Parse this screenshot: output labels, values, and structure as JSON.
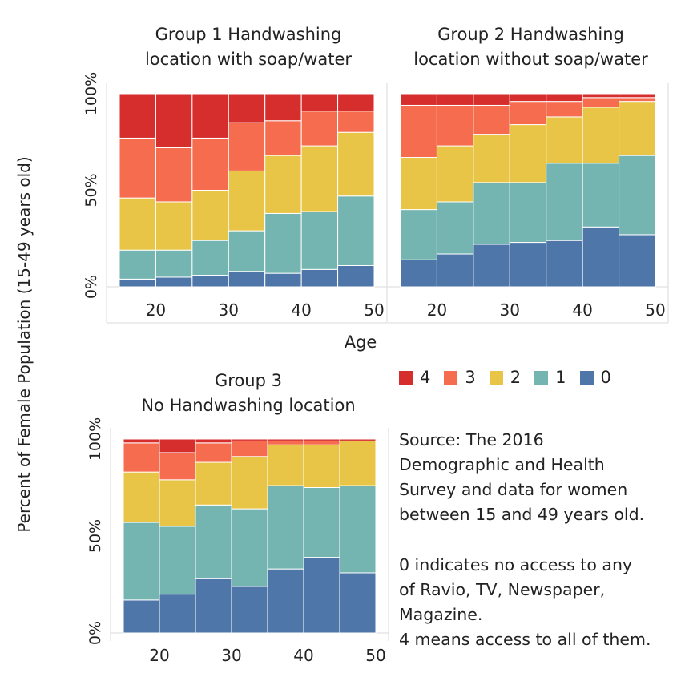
{
  "axis": {
    "ylabel": "Percent of Female Population (15-49 years old)",
    "xlabel": "Age",
    "y_ticks": [
      "0%",
      "50%",
      "100%"
    ],
    "x_ticks": [
      "20",
      "30",
      "40",
      "50"
    ]
  },
  "legend": {
    "items": [
      {
        "label": "4",
        "color": "#d62d2d"
      },
      {
        "label": "3",
        "color": "#f56c4f"
      },
      {
        "label": "2",
        "color": "#e8c547"
      },
      {
        "label": "1",
        "color": "#75b5b1"
      },
      {
        "label": "0",
        "color": "#4e76a8"
      }
    ]
  },
  "note": {
    "source_lines": [
      "Source: The 2016",
      "Demographic and Health",
      "Survey and data for women",
      "between 15 and 49 years old."
    ],
    "explanation_lines": [
      "0 indicates no access to any",
      "of Ravio, TV, Newspaper,",
      "Magazine.",
      "4 means access to all of them."
    ]
  },
  "chart_data": [
    {
      "type": "bar",
      "stacked": true,
      "title": "Group 1 Handwashing location with soap/water",
      "title_lines": [
        "Group 1 Handwashing",
        "location with soap/water"
      ],
      "x": [
        15,
        20,
        25,
        30,
        35,
        40,
        45
      ],
      "xlim": [
        15,
        50
      ],
      "ylim": [
        0,
        100
      ],
      "series": [
        {
          "name": "0",
          "values": [
            4,
            5,
            6,
            8,
            7,
            9,
            11
          ]
        },
        {
          "name": "1",
          "values": [
            15,
            14,
            18,
            21,
            31,
            30,
            36
          ]
        },
        {
          "name": "2",
          "values": [
            27,
            25,
            26,
            31,
            30,
            34,
            33
          ]
        },
        {
          "name": "3",
          "values": [
            31,
            28,
            27,
            25,
            18,
            18,
            11
          ]
        },
        {
          "name": "4",
          "values": [
            23,
            28,
            23,
            15,
            14,
            9,
            9
          ]
        }
      ]
    },
    {
      "type": "bar",
      "stacked": true,
      "title": "Group 2 Handwashing location without soap/water",
      "title_lines": [
        "Group 2 Handwashing",
        "location without soap/water"
      ],
      "x": [
        15,
        20,
        25,
        30,
        35,
        40,
        45
      ],
      "xlim": [
        15,
        50
      ],
      "ylim": [
        0,
        100
      ],
      "series": [
        {
          "name": "0",
          "values": [
            14,
            17,
            22,
            23,
            24,
            31,
            27
          ]
        },
        {
          "name": "1",
          "values": [
            26,
            27,
            32,
            31,
            40,
            33,
            41
          ]
        },
        {
          "name": "2",
          "values": [
            27,
            29,
            25,
            30,
            24,
            29,
            28
          ]
        },
        {
          "name": "3",
          "values": [
            27,
            21,
            15,
            12,
            8,
            5,
            2
          ]
        },
        {
          "name": "4",
          "values": [
            6,
            6,
            6,
            4,
            4,
            2,
            2
          ]
        }
      ]
    },
    {
      "type": "bar",
      "stacked": true,
      "title": "Group 3 No Handwashing location",
      "title_lines": [
        "Group 3",
        "No Handwashing location"
      ],
      "x": [
        15,
        20,
        25,
        30,
        35,
        40,
        45
      ],
      "xlim": [
        15,
        50
      ],
      "ylim": [
        0,
        100
      ],
      "series": [
        {
          "name": "0",
          "values": [
            17,
            20,
            28,
            24,
            33,
            39,
            31
          ]
        },
        {
          "name": "1",
          "values": [
            40,
            35,
            38,
            40,
            43,
            36,
            45
          ]
        },
        {
          "name": "2",
          "values": [
            26,
            24,
            22,
            27,
            21,
            22,
            23
          ]
        },
        {
          "name": "3",
          "values": [
            15,
            14,
            10,
            8,
            2,
            2,
            0
          ]
        },
        {
          "name": "4",
          "values": [
            2,
            7,
            2,
            1,
            1,
            1,
            1
          ]
        }
      ]
    }
  ]
}
